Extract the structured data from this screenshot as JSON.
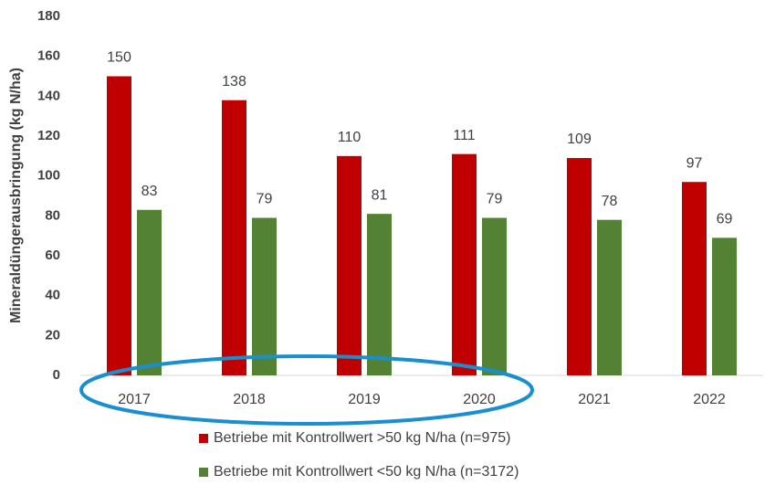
{
  "chart_data": {
    "type": "bar",
    "y_label": "Mineraldüngerausbringung (kg N/ha)",
    "categories": [
      "2017",
      "2018",
      "2019",
      "2020",
      "2021",
      "2022"
    ],
    "series": [
      {
        "name": "Betriebe mit Kontrollwert >50 kg N/ha (n=975)",
        "color": "#c00000",
        "values": [
          150,
          138,
          110,
          111,
          109,
          97
        ]
      },
      {
        "name": "Betriebe mit Kontrollwert <50 kg N/ha (n=3172)",
        "color": "#548235",
        "values": [
          83,
          79,
          81,
          79,
          78,
          69
        ]
      }
    ],
    "ylim": [
      0,
      180
    ],
    "yticks": [
      0,
      20,
      40,
      60,
      80,
      100,
      120,
      140,
      160,
      180
    ],
    "grid": false,
    "legend": "bottom"
  }
}
